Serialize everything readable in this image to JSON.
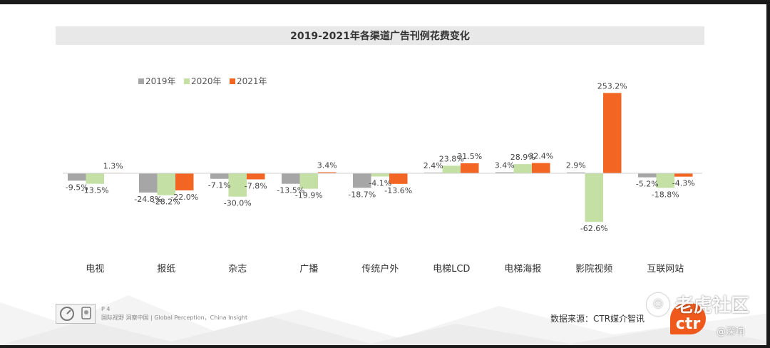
{
  "chart_data": {
    "type": "bar",
    "title": "2019-2021年各渠道广告刊例花费变化",
    "categories": [
      "电视",
      "报纸",
      "杂志",
      "广播",
      "传统户外",
      "电梯LCD",
      "电梯海报",
      "影院视频",
      "互联网站"
    ],
    "series": [
      {
        "name": "2019年",
        "color": "#a6a6a6",
        "values": [
          -9.5,
          -24.8,
          -7.1,
          -13.5,
          -18.7,
          2.4,
          3.4,
          2.9,
          -5.2
        ]
      },
      {
        "name": "2020年",
        "color": "#c5e0a5",
        "values": [
          -13.5,
          -28.2,
          -30.0,
          -19.9,
          -4.1,
          23.8,
          28.9,
          -62.6,
          -18.8
        ]
      },
      {
        "name": "2021年",
        "color": "#f26522",
        "values": [
          1.3,
          -22.0,
          -7.8,
          3.4,
          -13.6,
          31.5,
          32.4,
          253.2,
          -4.3
        ]
      }
    ],
    "labels": [
      [
        "-9.5%",
        "-24.8%",
        "-7.1%",
        "-13.5%",
        "-18.7%",
        "2.4%",
        "3.4%",
        "2.9%",
        "-5.2%"
      ],
      [
        "-13.5%",
        "-28.2%",
        "-30.0%",
        "-19.9%",
        "-4.1%",
        "23.8%",
        "28.9%",
        "-62.6%",
        "-18.8%"
      ],
      [
        "1.3%",
        "-22.0%",
        "-7.8%",
        "3.4%",
        "-13.6%",
        "31.5%",
        "32.4%",
        "253.2%",
        "-4.3%"
      ]
    ],
    "xlabel": "",
    "ylabel": "",
    "legend_position": "top-left",
    "grid": false
  },
  "footer": {
    "page": "P 4",
    "tagline": "国际视野  洞察中国 | Global Perception，China Insight",
    "source": "数据来源：CTR媒介智讯",
    "ctr_logo": "ctr"
  },
  "watermark": {
    "site": "老虎社区",
    "user": "@深响"
  }
}
